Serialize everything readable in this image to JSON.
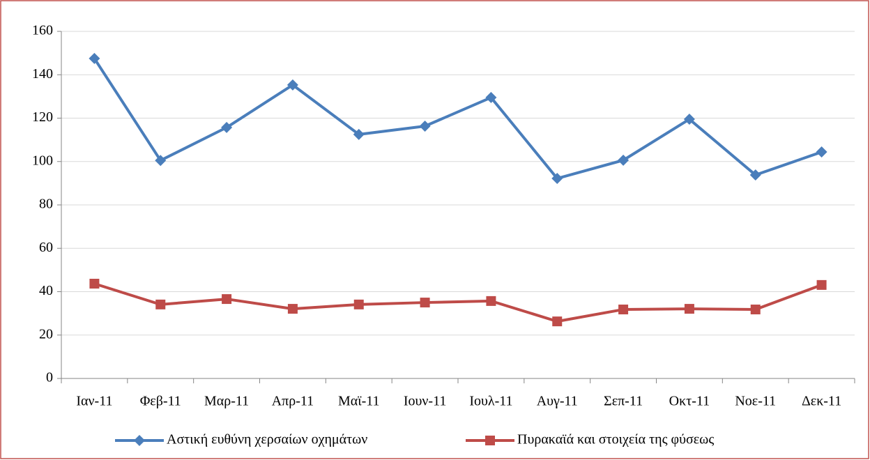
{
  "chart_data": {
    "type": "line",
    "categories": [
      "Ιαν-11",
      "Φεβ-11",
      "Μαρ-11",
      "Απρ-11",
      "Μαϊ-11",
      "Ιουν-11",
      "Ιουλ-11",
      "Αυγ-11",
      "Σεπ-11",
      "Οκτ-11",
      "Νοε-11",
      "Δεκ-11"
    ],
    "series": [
      {
        "name": "Αστική ευθύνη χερσαίων οχημάτων",
        "color": "#4a7ebb",
        "marker": "diamond",
        "values": [
          147.5,
          100.5,
          115.7,
          135.3,
          112.5,
          116.3,
          129.5,
          92.2,
          100.6,
          119.5,
          93.8,
          104.4
        ]
      },
      {
        "name": "Πυρακαϊά και στοιχεία της φύσεως",
        "color": "#be4b48",
        "marker": "square",
        "values": [
          43.7,
          34.1,
          36.6,
          32.1,
          34.1,
          35.0,
          35.7,
          26.3,
          31.8,
          32.1,
          31.8,
          43.1
        ]
      }
    ],
    "ylim": [
      0,
      160
    ],
    "yticks": [
      0,
      20,
      40,
      60,
      80,
      100,
      120,
      140,
      160
    ],
    "grid": true,
    "legend": "bottom"
  }
}
